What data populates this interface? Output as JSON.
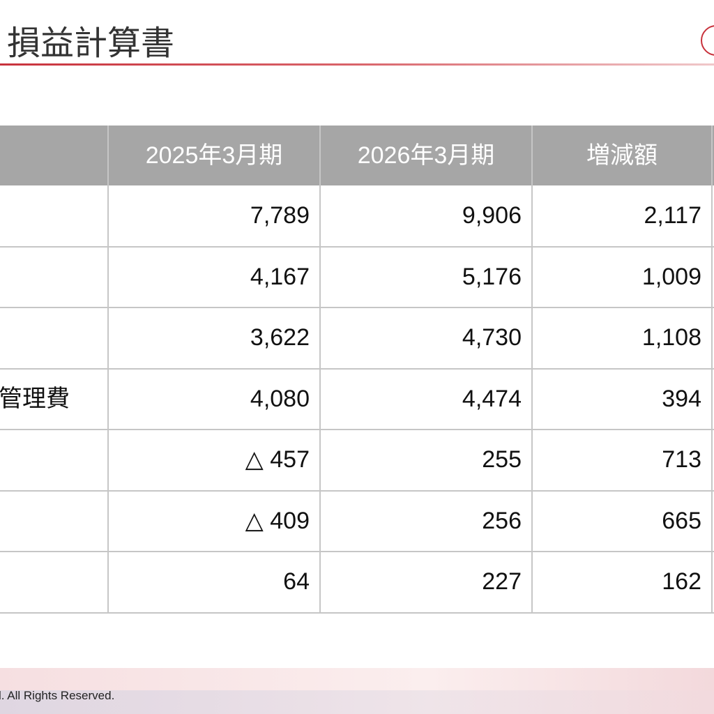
{
  "header": {
    "title": "損益計算書"
  },
  "table": {
    "columns": [
      "2025年3月期",
      "2026年3月期",
      "増減額"
    ],
    "rows": [
      {
        "cells": [
          "7,789",
          "9,906",
          "2,117"
        ]
      },
      {
        "cells": [
          "4,167",
          "5,176",
          "1,009"
        ]
      },
      {
        "cells": [
          "3,622",
          "4,730",
          "1,108"
        ]
      },
      {
        "label": "管理費",
        "cells": [
          "4,080",
          "4,474",
          "394"
        ]
      },
      {
        "cells": [
          "△ 457",
          "255",
          "713"
        ]
      },
      {
        "cells": [
          "△ 409",
          "256",
          "665"
        ]
      },
      {
        "cells": [
          "64",
          "227",
          "162"
        ]
      }
    ]
  },
  "footer": {
    "copyright": "l. All Rights Reserved."
  }
}
